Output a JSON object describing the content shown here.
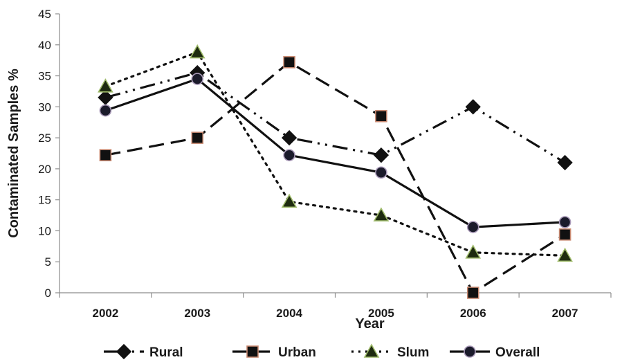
{
  "chart_data": {
    "type": "line",
    "xlabel": "Year",
    "ylabel": "Contaminated Samples %",
    "ylim": [
      0,
      45
    ],
    "yticks": [
      0,
      5,
      10,
      15,
      20,
      25,
      30,
      35,
      40,
      45
    ],
    "categories": [
      "2002",
      "2003",
      "2004",
      "2005",
      "2006",
      "2007"
    ],
    "grid": false,
    "legend_position": "bottom",
    "series": [
      {
        "name": "Rural",
        "values": [
          31.5,
          35.5,
          25.0,
          22.2,
          30.0,
          21.0
        ],
        "marker": "diamond",
        "dash": "dash-dot-dot",
        "line_color": "#111111",
        "fill": "#111111",
        "stroke": "#111111"
      },
      {
        "name": "Urban",
        "values": [
          22.2,
          25.0,
          37.2,
          28.5,
          0.0,
          9.4
        ],
        "marker": "square",
        "dash": "dash",
        "line_color": "#111111",
        "fill": "#111111",
        "stroke": "#c98a72"
      },
      {
        "name": "Slum",
        "values": [
          33.3,
          38.8,
          14.7,
          12.5,
          6.5,
          6.0
        ],
        "marker": "triangle",
        "dash": "dot",
        "line_color": "#111111",
        "fill": "#1e2b10",
        "stroke": "#9fbb6a"
      },
      {
        "name": "Overall",
        "values": [
          29.4,
          34.5,
          22.2,
          19.4,
          10.6,
          11.4
        ],
        "marker": "circle",
        "dash": "solid",
        "line_color": "#111111",
        "fill": "#1b1b2b",
        "stroke": "#a99ab8"
      }
    ]
  }
}
